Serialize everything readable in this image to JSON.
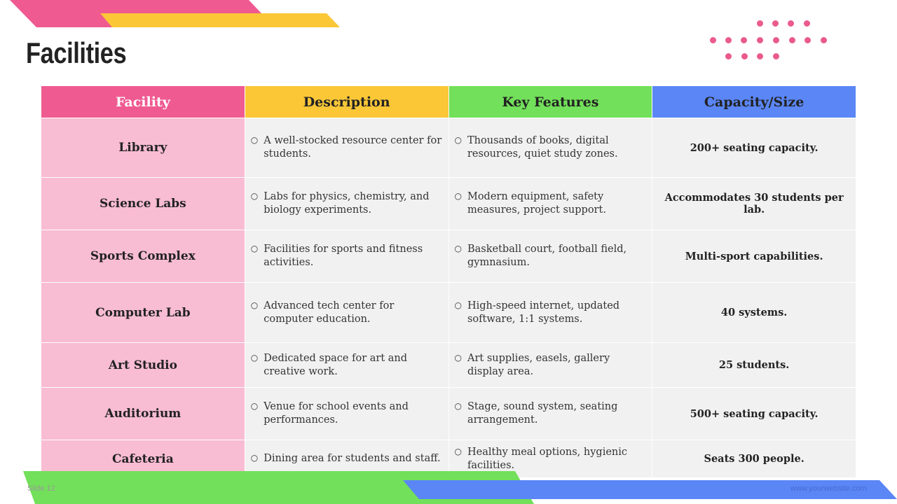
{
  "title": "Facilities",
  "colors": {
    "pink": "#ef5a90",
    "yellow": "#fbc737",
    "green": "#72e05a",
    "blue": "#5a86f6",
    "pink_light": "#f8bcd3"
  },
  "table": {
    "headers": [
      "Facility",
      "Description",
      "Key Features",
      "Capacity/Size"
    ],
    "rows": [
      {
        "facility": "Library",
        "description": "A well-stocked resource center for students.",
        "features": "Thousands of books, digital resources, quiet study zones.",
        "capacity": "200+ seating capacity."
      },
      {
        "facility": "Science Labs",
        "description": "Labs for physics, chemistry, and biology experiments.",
        "features": "Modern equipment, safety measures, project support.",
        "capacity": "Accommodates 30 students per lab."
      },
      {
        "facility": "Sports Complex",
        "description": "Facilities for sports and fitness activities.",
        "features": "Basketball court, football field, gymnasium.",
        "capacity": "Multi-sport capabilities."
      },
      {
        "facility": "Computer Lab",
        "description": "Advanced tech center for computer education.",
        "features": "High-speed internet, updated software, 1:1 systems.",
        "capacity": "40 systems."
      },
      {
        "facility": "Art Studio",
        "description": "Dedicated space for art and creative work.",
        "features": "Art supplies, easels, gallery display area.",
        "capacity": "25 students."
      },
      {
        "facility": "Auditorium",
        "description": "Venue for school events and performances.",
        "features": "Stage, sound system, seating arrangement.",
        "capacity": "500+ seating capacity."
      },
      {
        "facility": "Cafeteria",
        "description": "Dining area for students and staff.",
        "features": "Healthy meal options, hygienic facilities.",
        "capacity": "Seats 300 people."
      }
    ]
  },
  "bullet_icon": "hollow-circle",
  "footer": {
    "slide": "Slide 12",
    "website": "www.yourwebsite.com"
  }
}
